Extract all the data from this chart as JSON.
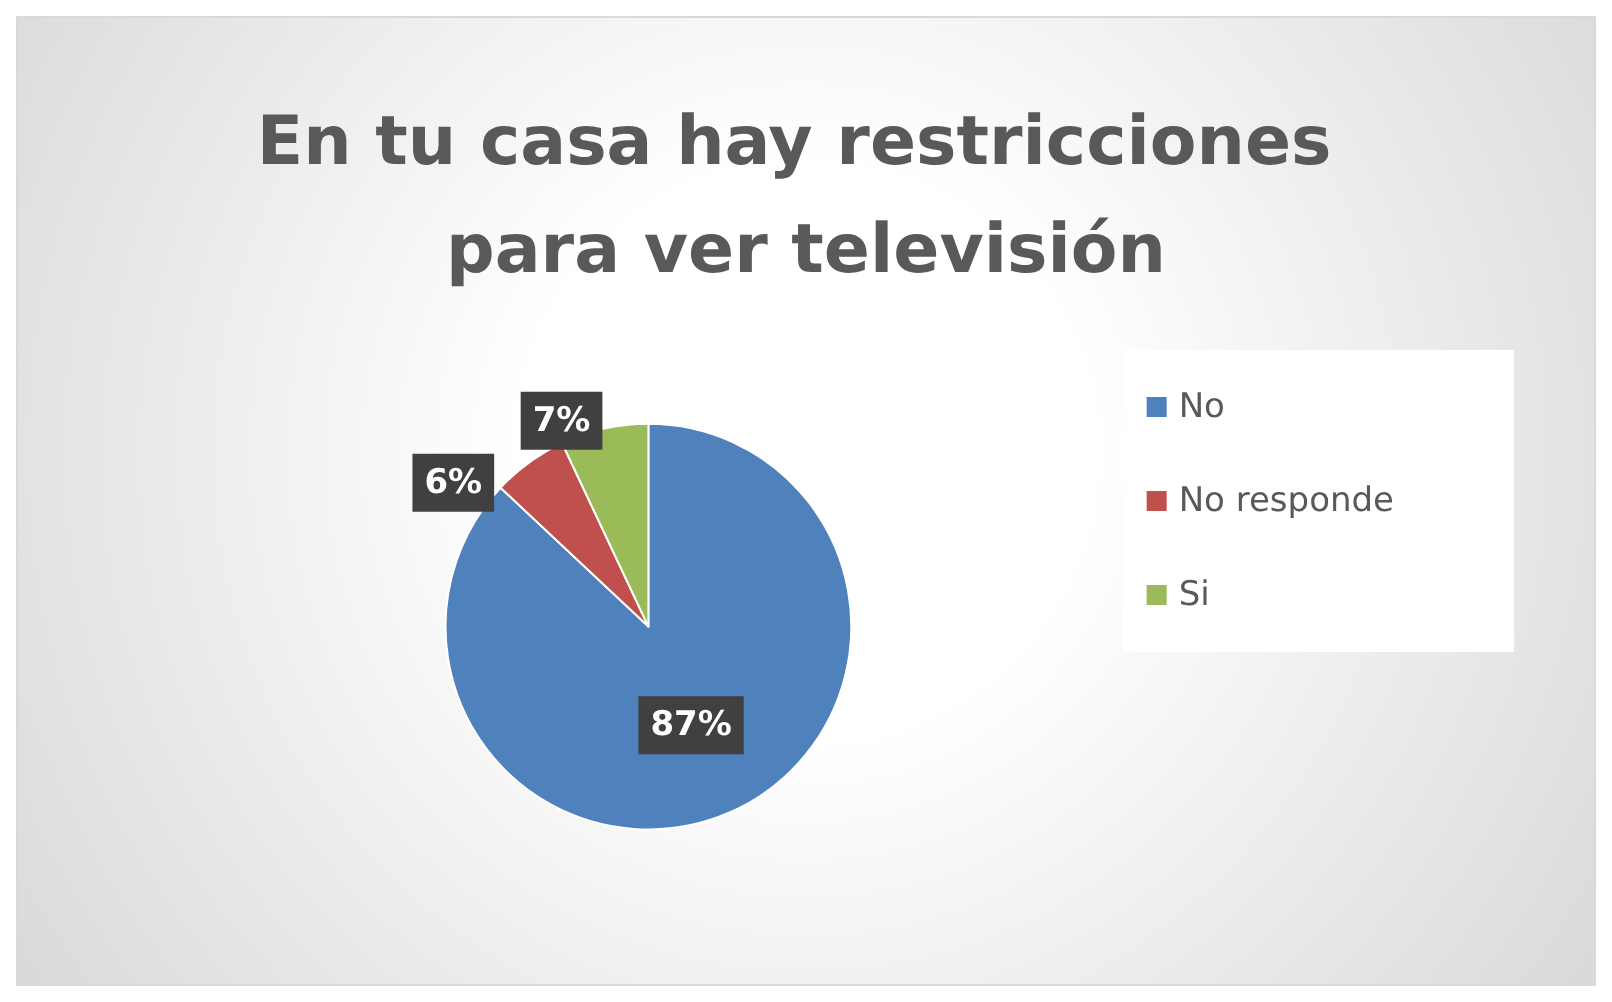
{
  "chart_data": {
    "type": "pie",
    "title": "En tu casa hay restricciones para ver televisión",
    "categories": [
      "No",
      "No responde",
      "Si"
    ],
    "values": [
      87,
      6,
      7
    ],
    "colors": [
      "#4f81bd",
      "#c0504d",
      "#9bbb59"
    ],
    "value_labels": [
      "87%",
      "6%",
      "7%"
    ],
    "legend": "right"
  }
}
